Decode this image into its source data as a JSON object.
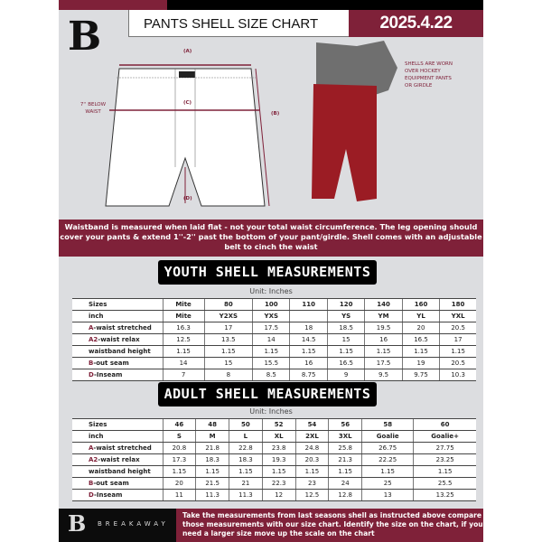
{
  "header": {
    "title": "PANTS SHELL SIZE CHART",
    "date": "2025.4.22",
    "logo_letter": "B"
  },
  "diagram": {
    "label_a": "(A)",
    "label_b": "(B)",
    "label_c": "(C)",
    "label_d": "(D)",
    "below_waist": "7'' BELOW WAIST",
    "side_note": "SHELLS ARE WORN OVER HOCKEY EQUIPMENT PANTS OR GIRDLE"
  },
  "notice": "Waistband is measured when laid flat - not your total waist circumference. The leg opening should cover your pants & extend 1''-2'' past the bottom of your pant/girdle. Shell comes with an adjustable belt to cinch the waist",
  "youth": {
    "title": "YOUTH SHELL MEASUREMENTS",
    "unit": "Unit: Inches",
    "rows": [
      {
        "prefix": "",
        "label": "Sizes",
        "values": [
          "Mite",
          "80",
          "100",
          "110",
          "120",
          "140",
          "160",
          "180"
        ]
      },
      {
        "prefix": "",
        "label": "inch",
        "values": [
          "Mite",
          "Y2XS",
          "YXS",
          "",
          "YS",
          "YM",
          "YL",
          "YXL"
        ]
      },
      {
        "prefix": "A",
        "label": "-waist stretched",
        "values": [
          "16.3",
          "17",
          "17.5",
          "18",
          "18.5",
          "19.5",
          "20",
          "20.5"
        ]
      },
      {
        "prefix": "A2",
        "label": "-waist relax",
        "values": [
          "12.5",
          "13.5",
          "14",
          "14.5",
          "15",
          "16",
          "16.5",
          "17"
        ]
      },
      {
        "prefix": "",
        "label": "waistband height",
        "values": [
          "1.15",
          "1.15",
          "1.15",
          "1.15",
          "1.15",
          "1.15",
          "1.15",
          "1.15"
        ]
      },
      {
        "prefix": "B",
        "label": "-out seam",
        "values": [
          "14",
          "15",
          "15.5",
          "16",
          "16.5",
          "17.5",
          "19",
          "20.5"
        ]
      },
      {
        "prefix": "D",
        "label": "-Inseam",
        "values": [
          "7",
          "8",
          "8.5",
          "8.75",
          "9",
          "9.5",
          "9.75",
          "10.3"
        ]
      }
    ]
  },
  "adult": {
    "title": "ADULT SHELL MEASUREMENTS",
    "unit": "Unit: Inches",
    "rows": [
      {
        "prefix": "",
        "label": "Sizes",
        "values": [
          "46",
          "48",
          "50",
          "52",
          "54",
          "56",
          "58",
          "60"
        ]
      },
      {
        "prefix": "",
        "label": "inch",
        "values": [
          "S",
          "M",
          "L",
          "XL",
          "2XL",
          "3XL",
          "Goalie",
          "Goalie+"
        ]
      },
      {
        "prefix": "A",
        "label": "-waist stretched",
        "values": [
          "20.8",
          "21.8",
          "22.8",
          "23.8",
          "24.8",
          "25.8",
          "26.75",
          "27.75"
        ]
      },
      {
        "prefix": "A2",
        "label": "-waist relax",
        "values": [
          "17.3",
          "18.3",
          "18.3",
          "19.3",
          "20.3",
          "21.3",
          "22.25",
          "23.25"
        ]
      },
      {
        "prefix": "",
        "label": "waistband height",
        "values": [
          "1.15",
          "1.15",
          "1.15",
          "1.15",
          "1.15",
          "1.15",
          "1.15",
          "1.15"
        ]
      },
      {
        "prefix": "B",
        "label": "-out seam",
        "values": [
          "20",
          "21.5",
          "21",
          "22.3",
          "23",
          "24",
          "25",
          "25.5"
        ]
      },
      {
        "prefix": "D",
        "label": "-Inseam",
        "values": [
          "11",
          "11.3",
          "11.3",
          "12",
          "12.5",
          "12.8",
          "13",
          "13.25"
        ]
      }
    ]
  },
  "footer": {
    "brand": "BREAKAWAY",
    "instructions": "Take the measurements from last seasons shell as instructed above compare those measurements  with our size chart. Identify the size on the chart, if you need a larger size move up the scale on the chart"
  },
  "colors": {
    "accent": "#7f2139",
    "background": "#dcdde0"
  }
}
